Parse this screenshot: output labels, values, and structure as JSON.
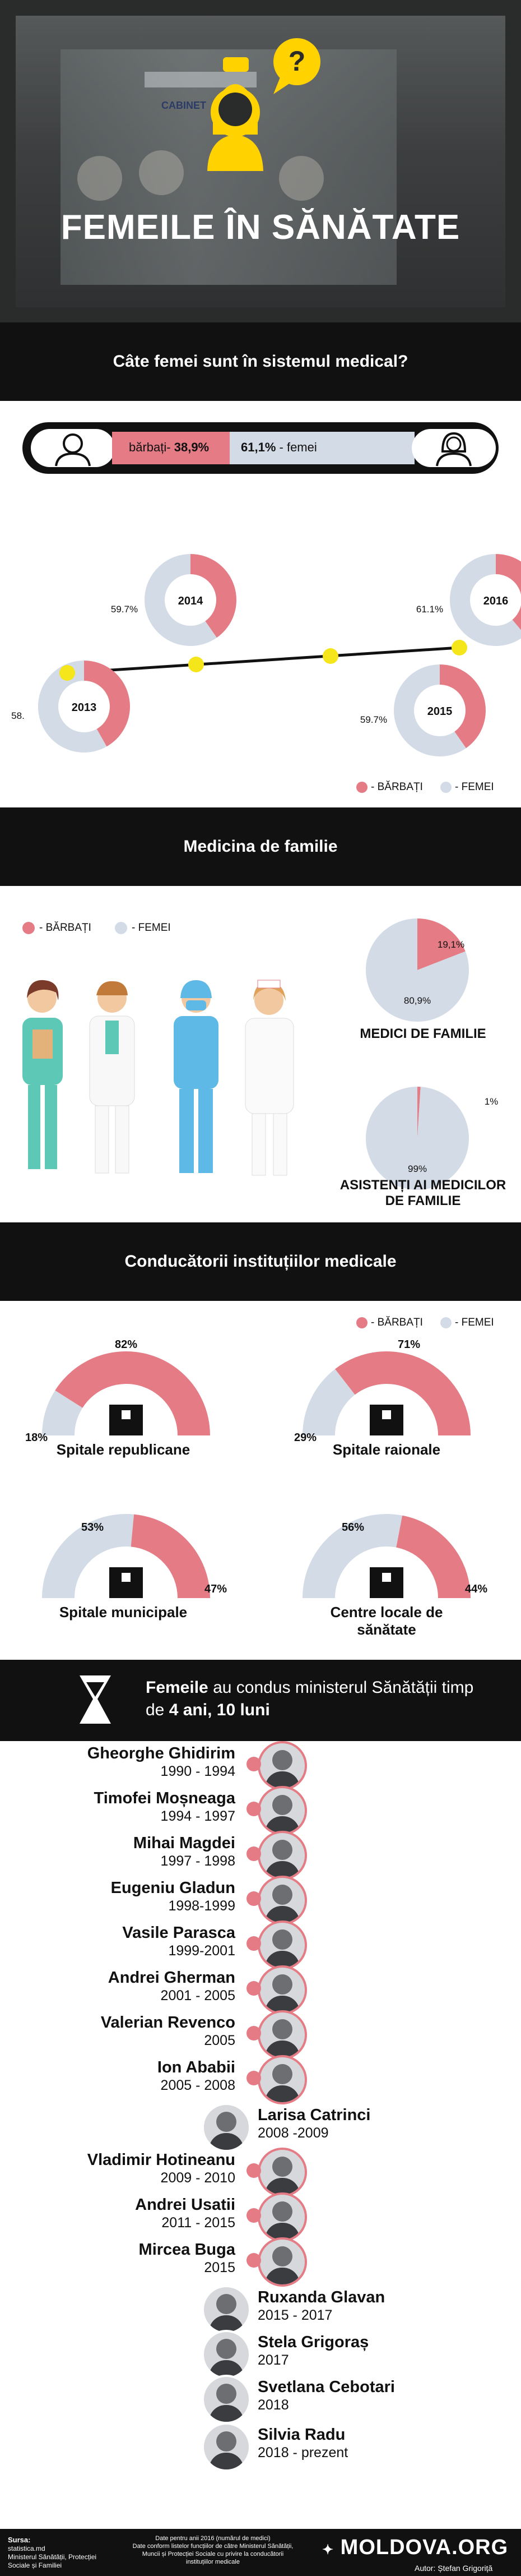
{
  "hero": {
    "title": "FEMEILE ÎN SĂNĂTATE",
    "sign_text": "CABINET"
  },
  "section1": {
    "title": "Câte femei sunt în sistemul medical?",
    "bar": {
      "men_label": "bărbați",
      "men_value": "38,9%",
      "women_value": "61,1%",
      "women_label": "femei"
    }
  },
  "section2": {
    "title": "Medicina de familie",
    "doctors_label": "MEDICI DE FAMILIE",
    "assistants_label": "ASISTENȚI AI MEDICILOR DE FAMILIE"
  },
  "section3": {
    "title": "Conducătorii instituțiilor medicale",
    "labels": [
      "Spitale republicane",
      "Spitale raionale",
      "Spitale municipale",
      "Centre locale de sănătate"
    ]
  },
  "legend": {
    "men": "- BĂRBAȚI",
    "women": "- FEMEI"
  },
  "colors": {
    "men": "#e47b85",
    "women": "#d3dbe6",
    "dark": "#111111"
  },
  "section4": {
    "prefix": "Femeile",
    "middle": "au condus ministerul Sănătății timp de",
    "duration": "4 ani, 10 luni",
    "ministers": [
      {
        "name": "Gheorghe Ghidirim",
        "years": "1990 - 1994",
        "gender": "m"
      },
      {
        "name": "Timofei Moșneaga",
        "years": "1994 - 1997",
        "gender": "m"
      },
      {
        "name": "Mihai Magdei",
        "years": "1997 - 1998",
        "gender": "m"
      },
      {
        "name": "Eugeniu Gladun",
        "years": "1998-1999",
        "gender": "m"
      },
      {
        "name": "Vasile Parasca",
        "years": "1999-2001",
        "gender": "m"
      },
      {
        "name": "Andrei Gherman",
        "years": "2001 - 2005",
        "gender": "m"
      },
      {
        "name": "Valerian Revenco",
        "years": "2005",
        "gender": "m"
      },
      {
        "name": "Ion Ababii",
        "years": "2005 - 2008",
        "gender": "m"
      },
      {
        "name": "Larisa Catrinci",
        "years": "2008 -2009",
        "gender": "f"
      },
      {
        "name": "Vladimir Hotineanu",
        "years": "2009 - 2010",
        "gender": "m"
      },
      {
        "name": "Andrei Usatii",
        "years": "2011 - 2015",
        "gender": "m"
      },
      {
        "name": "Mircea Buga",
        "years": "2015",
        "gender": "m"
      },
      {
        "name": "Ruxanda Glavan",
        "years": "2015 - 2017",
        "gender": "f"
      },
      {
        "name": "Stela Grigoraș",
        "years": "2017",
        "gender": "f"
      },
      {
        "name": "Svetlana Cebotari",
        "years": "2018",
        "gender": "f"
      },
      {
        "name": "Silvia Radu",
        "years": "2018 - prezent",
        "gender": "f"
      }
    ]
  },
  "footer": {
    "source_title": "Sursa:",
    "source_lines": [
      "statistica.md",
      "Ministerul Sănătății, Protecției",
      "Sociale și Familiei"
    ],
    "note_lines": [
      "Date pentru anii 2016 (numărul de medici)",
      "Date conform listelor funcțiilor de către Ministerul Sănătății,",
      "Muncii și Protecției Sociale cu privire la conducătorii",
      "instituțiilor medicale"
    ],
    "brand": "MOLDOVA.ORG",
    "author": "Autor: Ștefan Grigoriță"
  },
  "chart_data": [
    {
      "type": "bar",
      "title": "Câte femei sunt în sistemul medical?",
      "series": [
        {
          "name": "bărbați",
          "values": [
            38.9
          ]
        },
        {
          "name": "femei",
          "values": [
            61.1
          ]
        }
      ]
    },
    {
      "type": "pie",
      "series": [
        {
          "name": "2013",
          "values": [
            41.8,
            58.2
          ],
          "labels": [
            "",
            "58."
          ]
        },
        {
          "name": "2014",
          "values": [
            40.3,
            59.7
          ],
          "labels": [
            "",
            "59.7%"
          ]
        },
        {
          "name": "2015",
          "values": [
            40.3,
            59.7
          ],
          "labels": [
            "",
            "59.7%"
          ]
        },
        {
          "name": "2016",
          "values": [
            38.9,
            61.1
          ],
          "labels": [
            "",
            "61.1%"
          ]
        }
      ],
      "categories": [
        "BĂRBAȚI",
        "FEMEI"
      ]
    },
    {
      "type": "pie",
      "series": [
        {
          "name": "MEDICI DE FAMILIE",
          "values": [
            19.1,
            80.9
          ],
          "labels": [
            "19,1%",
            "80,9%"
          ]
        },
        {
          "name": "ASISTENȚI AI MEDICILOR DE FAMILIE",
          "values": [
            1,
            99
          ],
          "labels": [
            "1%",
            "99%"
          ]
        }
      ],
      "categories": [
        "BĂRBAȚI",
        "FEMEI"
      ]
    },
    {
      "type": "pie",
      "series": [
        {
          "name": "Spitale republicane",
          "values": [
            82,
            18
          ],
          "labels": [
            "82%",
            "18%"
          ]
        },
        {
          "name": "Spitale raionale",
          "values": [
            71,
            29
          ],
          "labels": [
            "71%",
            "29%"
          ]
        },
        {
          "name": "Spitale municipale",
          "values": [
            47,
            53
          ],
          "labels": [
            "47%",
            "53%"
          ]
        },
        {
          "name": "Centre locale de sănătate",
          "values": [
            44,
            56
          ],
          "labels": [
            "44%",
            "56%"
          ]
        }
      ],
      "categories": [
        "BĂRBAȚI",
        "FEMEI"
      ]
    }
  ]
}
